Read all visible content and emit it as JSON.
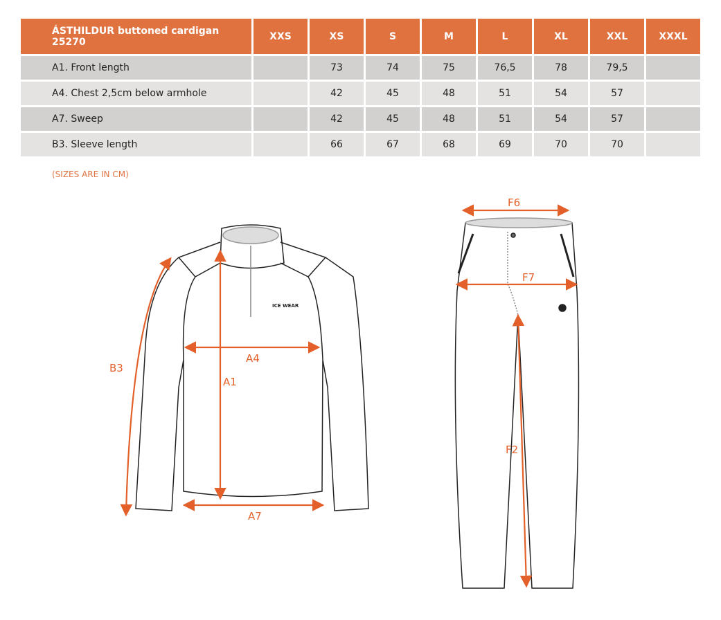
{
  "table": {
    "headers": [
      "ÁSTHILDUR buttoned cardigan 25270",
      "XXS",
      "XS",
      "S",
      "M",
      "L",
      "XL",
      "XXL",
      "XXXL"
    ],
    "rows": [
      {
        "label": "A1. Front length",
        "values": [
          "",
          "73",
          "74",
          "75",
          "76,5",
          "78",
          "79,5",
          ""
        ]
      },
      {
        "label": "A4. Chest 2,5cm below armhole",
        "values": [
          "",
          "42",
          "45",
          "48",
          "51",
          "54",
          "57",
          ""
        ]
      },
      {
        "label": "A7. Sweep",
        "values": [
          "",
          "42",
          "45",
          "48",
          "51",
          "54",
          "57",
          ""
        ]
      },
      {
        "label": "B3. Sleeve length",
        "values": [
          "",
          "66",
          "67",
          "68",
          "69",
          "70",
          "70",
          ""
        ]
      }
    ]
  },
  "note": "(SIZES ARE IN CM)",
  "diagram": {
    "jacket_labels": {
      "b3": "B3",
      "a1": "A1",
      "a4": "A4",
      "a7": "A7"
    },
    "pants_labels": {
      "f6": "F6",
      "f7": "F7",
      "f2": "F2"
    },
    "logo": "ICE WEAR",
    "accent_color": "#E4602A",
    "header_color": "#E07240"
  }
}
